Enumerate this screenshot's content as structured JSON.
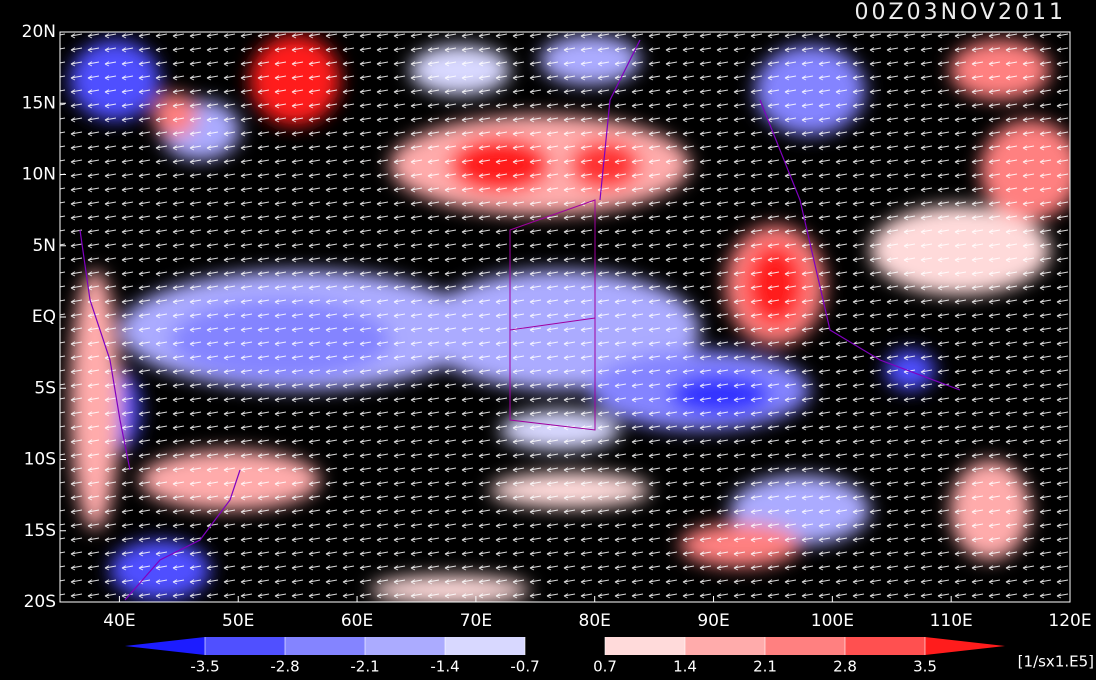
{
  "title": "00Z03NOV2011",
  "lat_labels": [
    "20N",
    "15N",
    "10N",
    "5N",
    "EQ",
    "5S",
    "10S",
    "15S",
    "20S"
  ],
  "lon_labels": [
    "40E",
    "50E",
    "60E",
    "70E",
    "80E",
    "90E",
    "100E",
    "110E",
    "120E"
  ],
  "colorbar": {
    "levels": [
      -3.5,
      -2.8,
      -2.1,
      -1.4,
      -0.7,
      0.7,
      1.4,
      2.1,
      2.8,
      3.5
    ],
    "colors": [
      "#1c1cff",
      "#5050ff",
      "#8484ff",
      "#ababff",
      "#d8d8ff",
      "#000000",
      "#ffdada",
      "#ffabab",
      "#ff8080",
      "#ff5050",
      "#ff1c1c"
    ],
    "units": "[1/sx1.E5]"
  }
}
